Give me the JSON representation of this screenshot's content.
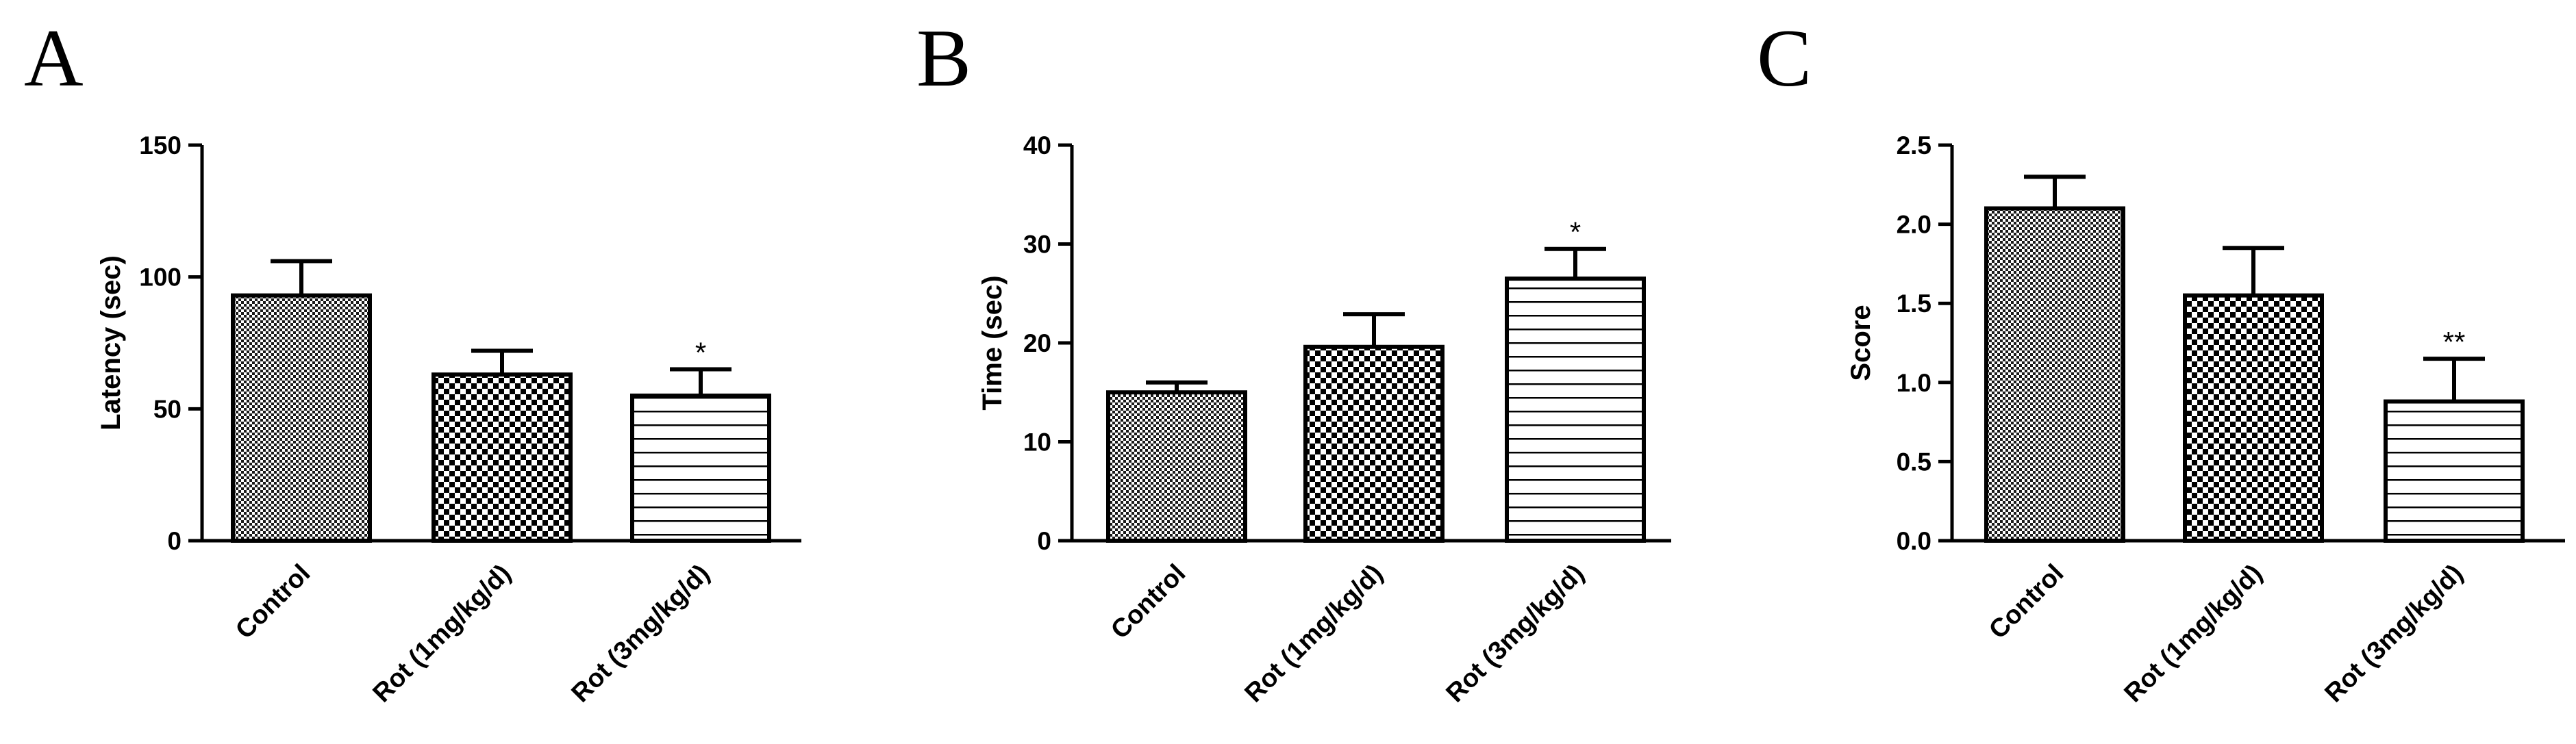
{
  "chart_data": [
    {
      "type": "bar",
      "panel_label": "A",
      "categories": [
        "Control",
        "Rot (1mg/kg/d)",
        "Rot (3mg/kg/d)"
      ],
      "values": [
        93,
        63,
        55
      ],
      "error": [
        13,
        9,
        10
      ],
      "significance": [
        "",
        "",
        "*"
      ],
      "patterns": [
        "fine-check",
        "coarse-check",
        "hstripes"
      ],
      "ylabel": "Latency (sec)",
      "ylim": [
        0,
        150
      ],
      "yticks": [
        "0",
        "50",
        "100",
        "150"
      ]
    },
    {
      "type": "bar",
      "panel_label": "B",
      "categories": [
        "Control",
        "Rot (1mg/kg/d)",
        "Rot (3mg/kg/d)"
      ],
      "values": [
        15,
        19.6,
        26.5
      ],
      "error": [
        1,
        3.3,
        3
      ],
      "significance": [
        "",
        "",
        "*"
      ],
      "patterns": [
        "fine-check",
        "coarse-check",
        "hstripes"
      ],
      "ylabel": "Time (sec)",
      "ylim": [
        0,
        40
      ],
      "yticks": [
        "0",
        "10",
        "20",
        "30",
        "40"
      ]
    },
    {
      "type": "bar",
      "panel_label": "C",
      "categories": [
        "Control",
        "Rot (1mg/kg/d)",
        "Rot (3mg/kg/d)"
      ],
      "values": [
        2.1,
        1.55,
        0.88
      ],
      "error": [
        0.2,
        0.3,
        0.27
      ],
      "significance": [
        "",
        "",
        "**"
      ],
      "patterns": [
        "fine-check",
        "coarse-check",
        "hstripes"
      ],
      "ylabel": "Score",
      "ylim": [
        0,
        2.5
      ],
      "yticks": [
        "0.0",
        "0.5",
        "1.0",
        "1.5",
        "2.0",
        "2.5"
      ]
    }
  ]
}
